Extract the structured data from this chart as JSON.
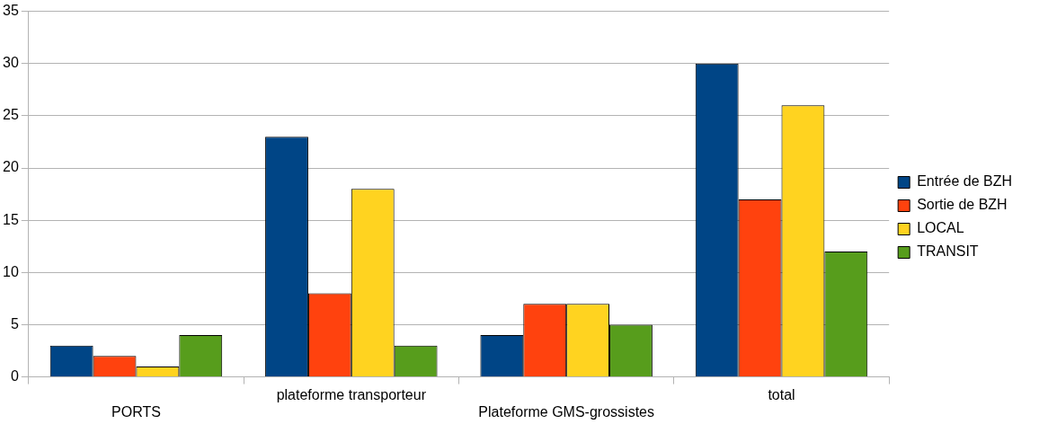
{
  "chart_data": {
    "type": "bar",
    "categories": [
      "PORTS",
      "plateforme transporteur",
      "Plateforme GMS-grossistes",
      "total"
    ],
    "series": [
      {
        "name": "Entrée de BZH",
        "color": "#004586",
        "values": [
          3,
          23,
          4,
          30
        ]
      },
      {
        "name": "Sortie de BZH",
        "color": "#ff420e",
        "values": [
          2,
          8,
          7,
          17
        ]
      },
      {
        "name": "LOCAL",
        "color": "#ffd320",
        "values": [
          1,
          18,
          7,
          26
        ]
      },
      {
        "name": "TRANSIT",
        "color": "#579d1c",
        "values": [
          4,
          3,
          5,
          12
        ]
      }
    ],
    "ylim": [
      0,
      35
    ],
    "yticks": [
      0,
      5,
      10,
      15,
      20,
      25,
      30,
      35
    ],
    "grid": "y",
    "legend": "right"
  }
}
